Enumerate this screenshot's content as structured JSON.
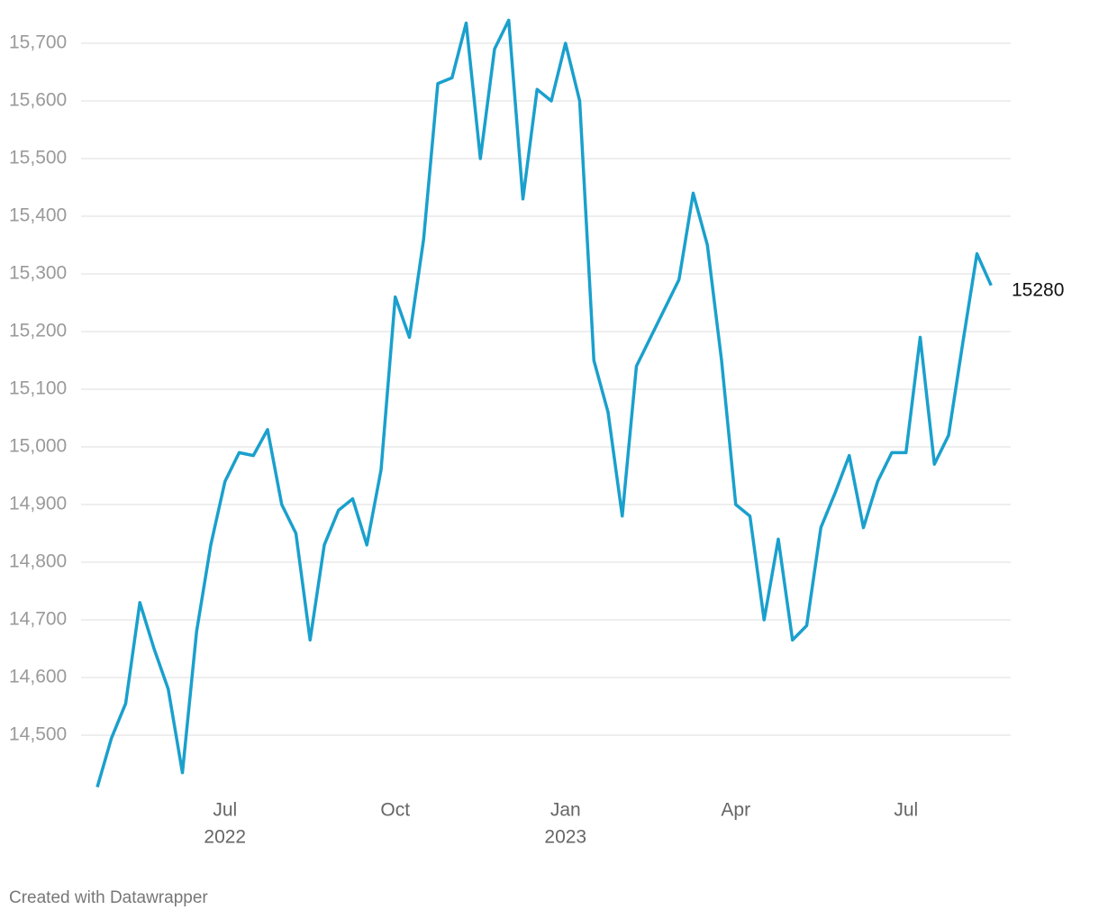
{
  "chart_data": {
    "type": "line",
    "x": [
      "2022-05",
      "2022-05",
      "2022-05",
      "2022-05",
      "2022-05",
      "2022-06",
      "2022-06",
      "2022-06",
      "2022-06",
      "2022-07",
      "2022-07",
      "2022-07",
      "2022-07",
      "2022-08",
      "2022-08",
      "2022-08",
      "2022-08",
      "2022-09",
      "2022-09",
      "2022-09",
      "2022-09",
      "2022-10",
      "2022-10",
      "2022-10",
      "2022-10",
      "2022-11",
      "2022-11",
      "2022-11",
      "2022-11",
      "2022-12",
      "2022-12",
      "2022-12",
      "2022-12",
      "2023-01",
      "2023-01",
      "2023-01",
      "2023-01",
      "2023-02",
      "2023-02",
      "2023-02",
      "2023-02",
      "2023-03",
      "2023-03",
      "2023-03",
      "2023-03",
      "2023-04",
      "2023-04",
      "2023-04",
      "2023-04",
      "2023-05",
      "2023-05",
      "2023-05",
      "2023-05",
      "2023-06",
      "2023-06",
      "2023-06",
      "2023-06",
      "2023-07",
      "2023-07",
      "2023-07",
      "2023-07",
      "2023-08",
      "2023-08",
      "2023-08"
    ],
    "series": [
      {
        "color": "#1aa0cd",
        "values": [
          14410,
          14495,
          14555,
          14730,
          14650,
          14580,
          14435,
          14680,
          14830,
          14940,
          14990,
          14985,
          15030,
          14900,
          14850,
          14665,
          14830,
          14890,
          14910,
          14830,
          14960,
          15260,
          15190,
          15360,
          15630,
          15640,
          15735,
          15500,
          15690,
          15740,
          15430,
          15620,
          15600,
          15700,
          15600,
          15150,
          15060,
          14880,
          15140,
          15190,
          15240,
          15290,
          15440,
          15350,
          15150,
          14900,
          14880,
          14700,
          14840,
          14665,
          14690,
          14860,
          14920,
          14985,
          14860,
          14940,
          14990,
          14990,
          15190,
          14970,
          15020,
          15180,
          15335,
          15280
        ]
      }
    ],
    "ylim": [
      14400,
      15760
    ],
    "yticks": [
      {
        "value": 14500,
        "label": "14,500"
      },
      {
        "value": 14600,
        "label": "14,600"
      },
      {
        "value": 14700,
        "label": "14,700"
      },
      {
        "value": 14800,
        "label": "14,800"
      },
      {
        "value": 14900,
        "label": "14,900"
      },
      {
        "value": 15000,
        "label": "15,000"
      },
      {
        "value": 15100,
        "label": "15,100"
      },
      {
        "value": 15200,
        "label": "15,200"
      },
      {
        "value": 15300,
        "label": "15,300"
      },
      {
        "value": 15400,
        "label": "15,400"
      },
      {
        "value": 15500,
        "label": "15,500"
      },
      {
        "value": 15600,
        "label": "15,600"
      },
      {
        "value": 15700,
        "label": "15,700"
      }
    ],
    "xticks": [
      {
        "value": "2022-07",
        "label": "Jul",
        "sublabel": "2022"
      },
      {
        "value": "2022-10",
        "label": "Oct"
      },
      {
        "value": "2023-01",
        "label": "Jan",
        "sublabel": "2023"
      },
      {
        "value": "2023-04",
        "label": "Apr"
      },
      {
        "value": "2023-07",
        "label": "Jul"
      }
    ],
    "grid": true,
    "footer": "Created with Datawrapper"
  }
}
